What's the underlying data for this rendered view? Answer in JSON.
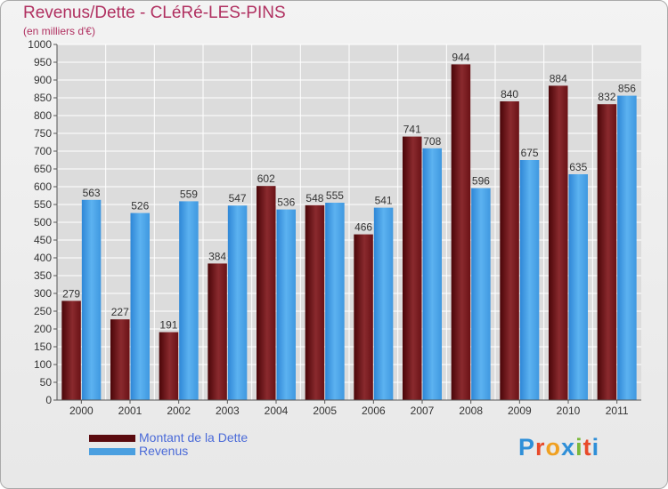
{
  "chart_data": {
    "type": "bar",
    "title": "Revenus/Dette - CLéRé-LES-PINS",
    "subtitle": "(en milliers d'€)",
    "categories": [
      "2000",
      "2001",
      "2002",
      "2003",
      "2004",
      "2005",
      "2006",
      "2007",
      "2008",
      "2009",
      "2010",
      "2011"
    ],
    "series": [
      {
        "name": "Montant de la Dette",
        "color": "#7a1a1e",
        "values": [
          279,
          227,
          191,
          384,
          602,
          548,
          466,
          741,
          944,
          840,
          884,
          832
        ]
      },
      {
        "name": "Revenus",
        "color": "#4a9fe0",
        "values": [
          563,
          526,
          559,
          547,
          536,
          555,
          541,
          708,
          596,
          675,
          635,
          856
        ]
      }
    ],
    "ylim": [
      0,
      1000
    ],
    "ytick_step": 50,
    "grid": true,
    "legend": "bottom-left"
  },
  "logo_text": "Proxiti",
  "colors": {
    "title": "#b03060",
    "legend_text": "#4a6ad8",
    "grid": "#ffffff"
  }
}
